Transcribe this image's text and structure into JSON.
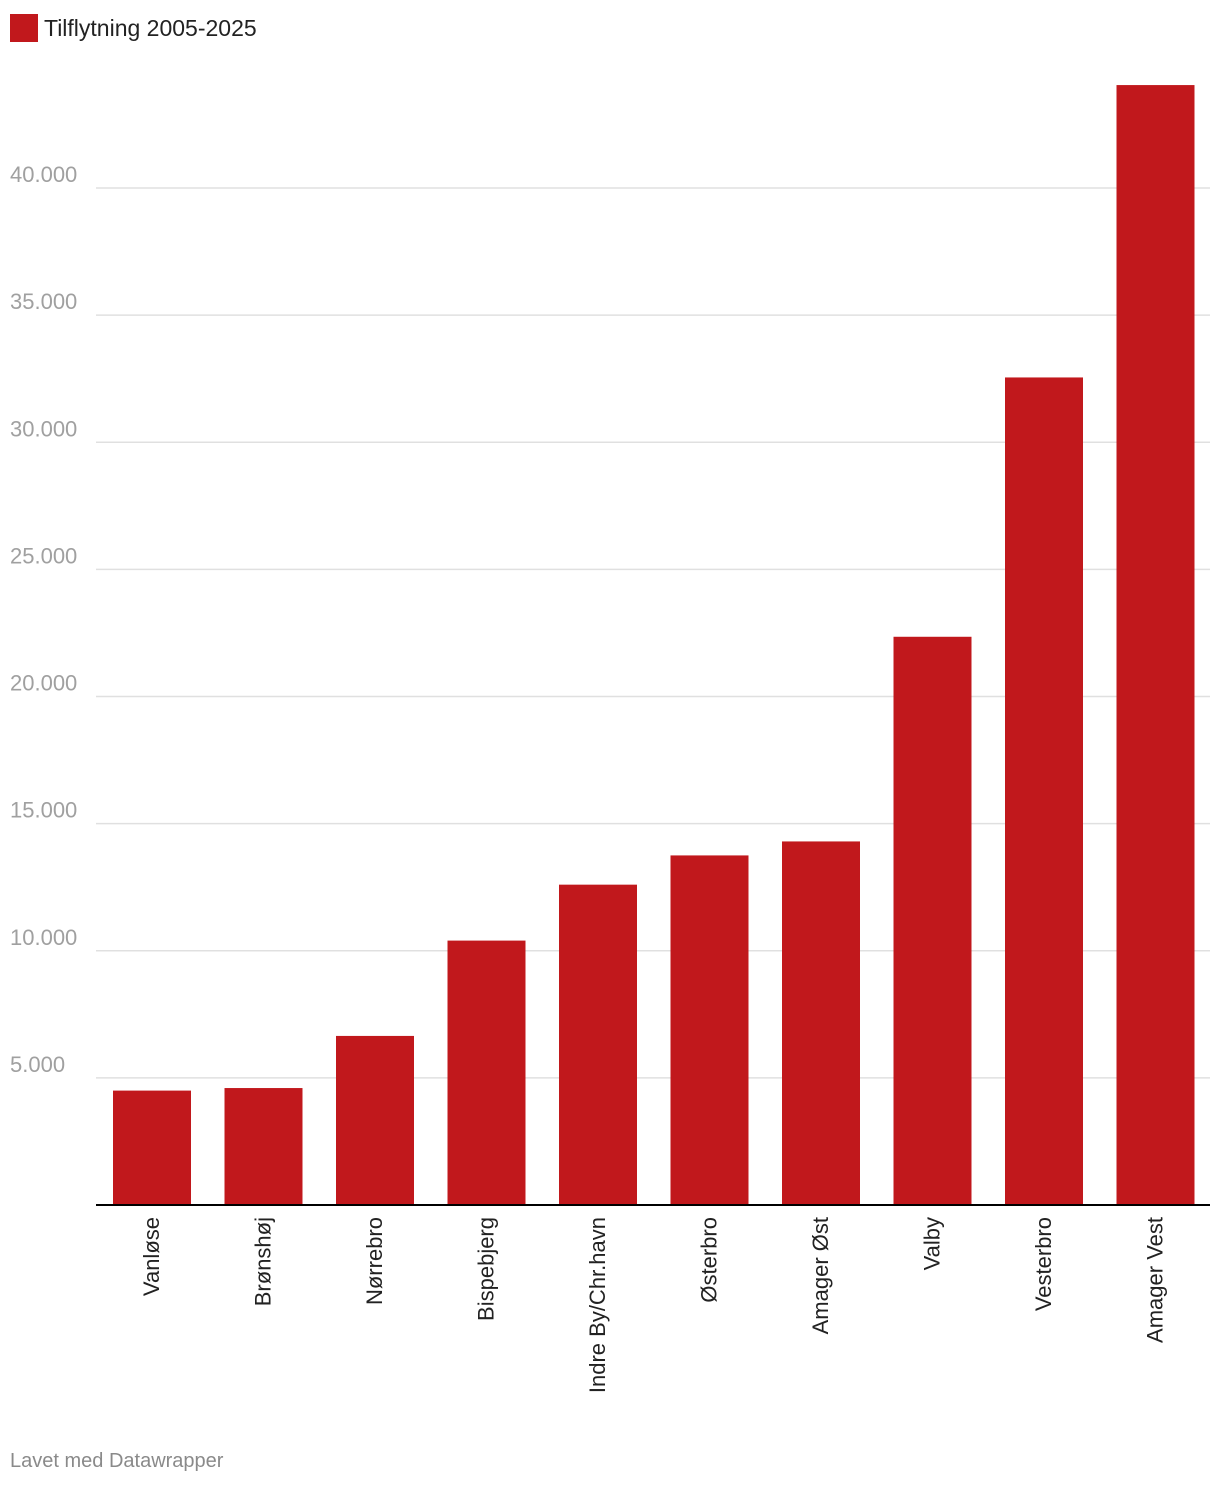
{
  "colors": {
    "bar": "#c1181c",
    "grid": "#e0e0e0",
    "tick_label": "#a0a0a0",
    "axis": "#000000"
  },
  "legend": {
    "label": "Tilflytning 2005-2025"
  },
  "footer": {
    "text": "Lavet med Datawrapper"
  },
  "chart_data": {
    "type": "bar",
    "title": "",
    "xlabel": "",
    "ylabel": "",
    "ylim": [
      0,
      44000
    ],
    "yticks": [
      5000,
      10000,
      15000,
      20000,
      25000,
      30000,
      35000,
      40000
    ],
    "ytick_labels": [
      "5.000",
      "10.000",
      "15.000",
      "20.000",
      "25.000",
      "30.000",
      "35.000",
      "40.000"
    ],
    "grid": true,
    "legend": "top-left",
    "categories": [
      "Vanløse",
      "Brønshøj",
      "Nørrebro",
      "Bispebjerg",
      "Indre By/Chr.havn",
      "Østerbro",
      "Amager Øst",
      "Valby",
      "Vesterbro",
      "Amager Vest"
    ],
    "series": [
      {
        "name": "Tilflytning 2005-2025",
        "values": [
          4500,
          4600,
          6650,
          10400,
          12600,
          13750,
          14300,
          22350,
          32550,
          44050
        ]
      }
    ]
  }
}
